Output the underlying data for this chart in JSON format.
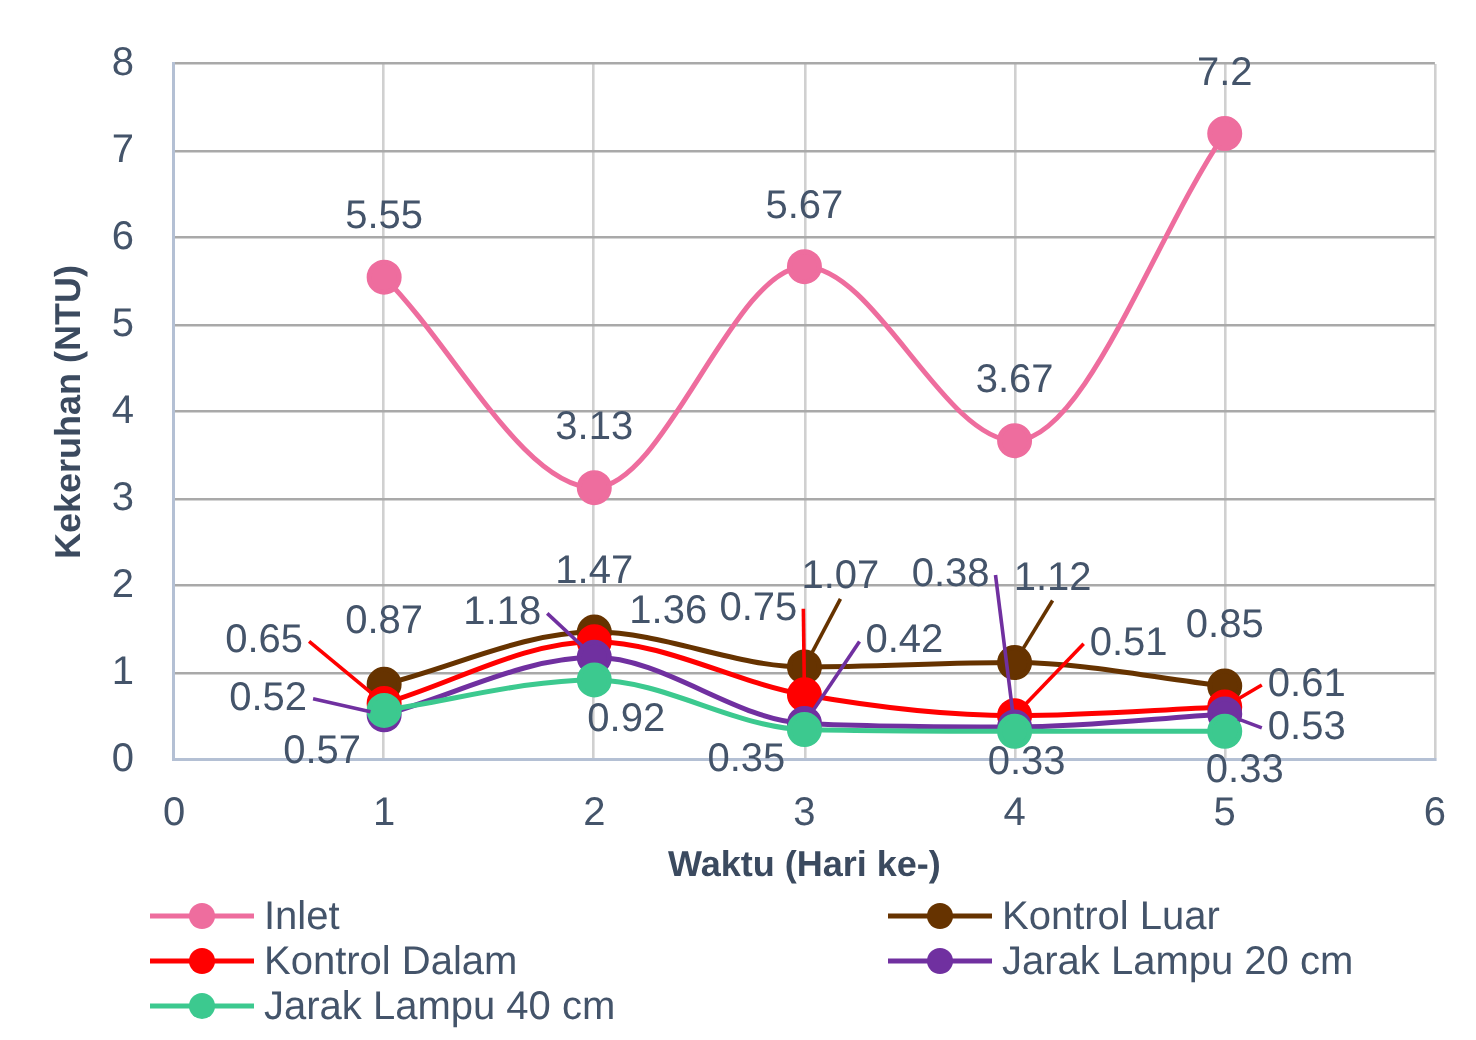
{
  "chart_data": {
    "type": "line",
    "xlabel": "Waktu (Hari ke-)",
    "ylabel": "Kekeruhan (NTU)",
    "x": [
      1,
      2,
      3,
      4,
      5
    ],
    "series": [
      {
        "name": "Inlet",
        "color": "#ee6d9e",
        "values": [
          5.55,
          3.13,
          5.67,
          3.67,
          7.2
        ]
      },
      {
        "name": "Kontrol Luar",
        "color": "#663300",
        "values": [
          0.87,
          1.47,
          1.07,
          1.12,
          0.85
        ]
      },
      {
        "name": "Kontrol Dalam",
        "color": "#ff0000",
        "values": [
          0.65,
          1.36,
          0.75,
          0.51,
          0.61
        ]
      },
      {
        "name": "Jarak Lampu 20 cm",
        "color": "#7030a0",
        "values": [
          0.52,
          1.18,
          0.42,
          0.38,
          0.53
        ]
      },
      {
        "name": "Jarak Lampu 40 cm",
        "color": "#3cc98f",
        "values": [
          0.57,
          0.92,
          0.35,
          0.33,
          0.33
        ]
      }
    ],
    "xlim": [
      0,
      6
    ],
    "xticks": [
      0,
      1,
      2,
      3,
      4,
      5,
      6
    ],
    "ylim": [
      0,
      8
    ],
    "yticks": [
      0,
      1,
      2,
      3,
      4,
      5,
      6,
      7,
      8
    ],
    "grid": true,
    "legend": "bottom",
    "marker": "circle",
    "line_style": "solid",
    "data_labels": true
  }
}
